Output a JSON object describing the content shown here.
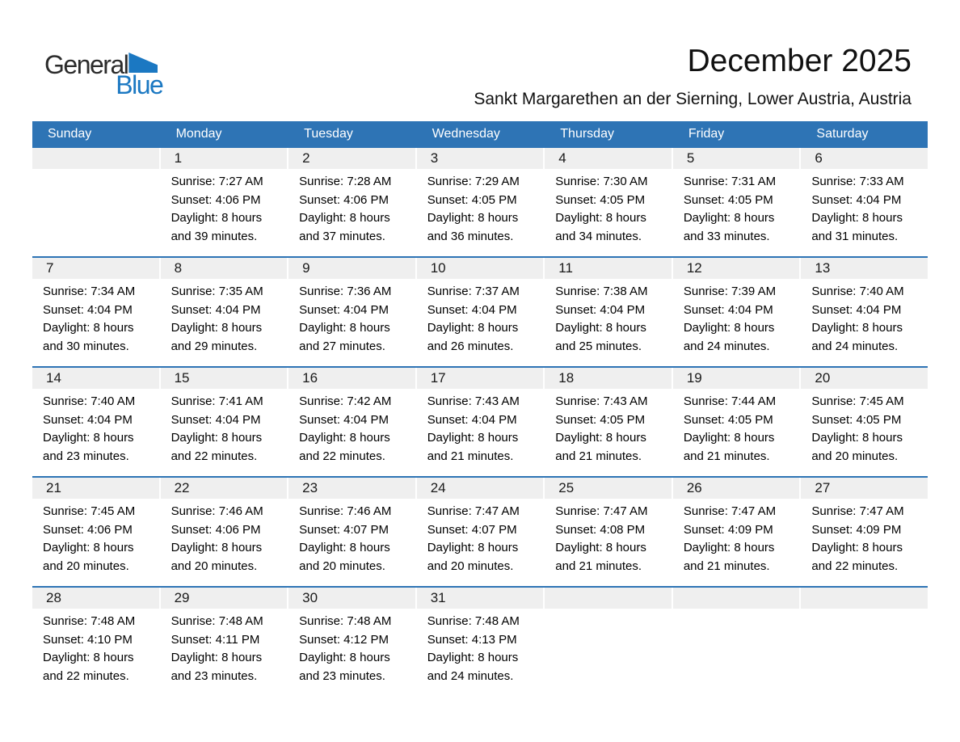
{
  "logo": {
    "general": "General",
    "blue": "Blue"
  },
  "icons": {
    "logo_triangle_icon": "blue-right-triangle-flag"
  },
  "header": {
    "title": "December 2025",
    "subtitle": "Sankt Margarethen an der Sierning, Lower Austria, Austria"
  },
  "weekdays": [
    "Sunday",
    "Monday",
    "Tuesday",
    "Wednesday",
    "Thursday",
    "Friday",
    "Saturday"
  ],
  "weeks": [
    [
      {
        "day": "",
        "lines": []
      },
      {
        "day": "1",
        "lines": [
          "Sunrise: 7:27 AM",
          "Sunset: 4:06 PM",
          "Daylight: 8 hours",
          "and 39 minutes."
        ]
      },
      {
        "day": "2",
        "lines": [
          "Sunrise: 7:28 AM",
          "Sunset: 4:06 PM",
          "Daylight: 8 hours",
          "and 37 minutes."
        ]
      },
      {
        "day": "3",
        "lines": [
          "Sunrise: 7:29 AM",
          "Sunset: 4:05 PM",
          "Daylight: 8 hours",
          "and 36 minutes."
        ]
      },
      {
        "day": "4",
        "lines": [
          "Sunrise: 7:30 AM",
          "Sunset: 4:05 PM",
          "Daylight: 8 hours",
          "and 34 minutes."
        ]
      },
      {
        "day": "5",
        "lines": [
          "Sunrise: 7:31 AM",
          "Sunset: 4:05 PM",
          "Daylight: 8 hours",
          "and 33 minutes."
        ]
      },
      {
        "day": "6",
        "lines": [
          "Sunrise: 7:33 AM",
          "Sunset: 4:04 PM",
          "Daylight: 8 hours",
          "and 31 minutes."
        ]
      }
    ],
    [
      {
        "day": "7",
        "lines": [
          "Sunrise: 7:34 AM",
          "Sunset: 4:04 PM",
          "Daylight: 8 hours",
          "and 30 minutes."
        ]
      },
      {
        "day": "8",
        "lines": [
          "Sunrise: 7:35 AM",
          "Sunset: 4:04 PM",
          "Daylight: 8 hours",
          "and 29 minutes."
        ]
      },
      {
        "day": "9",
        "lines": [
          "Sunrise: 7:36 AM",
          "Sunset: 4:04 PM",
          "Daylight: 8 hours",
          "and 27 minutes."
        ]
      },
      {
        "day": "10",
        "lines": [
          "Sunrise: 7:37 AM",
          "Sunset: 4:04 PM",
          "Daylight: 8 hours",
          "and 26 minutes."
        ]
      },
      {
        "day": "11",
        "lines": [
          "Sunrise: 7:38 AM",
          "Sunset: 4:04 PM",
          "Daylight: 8 hours",
          "and 25 minutes."
        ]
      },
      {
        "day": "12",
        "lines": [
          "Sunrise: 7:39 AM",
          "Sunset: 4:04 PM",
          "Daylight: 8 hours",
          "and 24 minutes."
        ]
      },
      {
        "day": "13",
        "lines": [
          "Sunrise: 7:40 AM",
          "Sunset: 4:04 PM",
          "Daylight: 8 hours",
          "and 24 minutes."
        ]
      }
    ],
    [
      {
        "day": "14",
        "lines": [
          "Sunrise: 7:40 AM",
          "Sunset: 4:04 PM",
          "Daylight: 8 hours",
          "and 23 minutes."
        ]
      },
      {
        "day": "15",
        "lines": [
          "Sunrise: 7:41 AM",
          "Sunset: 4:04 PM",
          "Daylight: 8 hours",
          "and 22 minutes."
        ]
      },
      {
        "day": "16",
        "lines": [
          "Sunrise: 7:42 AM",
          "Sunset: 4:04 PM",
          "Daylight: 8 hours",
          "and 22 minutes."
        ]
      },
      {
        "day": "17",
        "lines": [
          "Sunrise: 7:43 AM",
          "Sunset: 4:04 PM",
          "Daylight: 8 hours",
          "and 21 minutes."
        ]
      },
      {
        "day": "18",
        "lines": [
          "Sunrise: 7:43 AM",
          "Sunset: 4:05 PM",
          "Daylight: 8 hours",
          "and 21 minutes."
        ]
      },
      {
        "day": "19",
        "lines": [
          "Sunrise: 7:44 AM",
          "Sunset: 4:05 PM",
          "Daylight: 8 hours",
          "and 21 minutes."
        ]
      },
      {
        "day": "20",
        "lines": [
          "Sunrise: 7:45 AM",
          "Sunset: 4:05 PM",
          "Daylight: 8 hours",
          "and 20 minutes."
        ]
      }
    ],
    [
      {
        "day": "21",
        "lines": [
          "Sunrise: 7:45 AM",
          "Sunset: 4:06 PM",
          "Daylight: 8 hours",
          "and 20 minutes."
        ]
      },
      {
        "day": "22",
        "lines": [
          "Sunrise: 7:46 AM",
          "Sunset: 4:06 PM",
          "Daylight: 8 hours",
          "and 20 minutes."
        ]
      },
      {
        "day": "23",
        "lines": [
          "Sunrise: 7:46 AM",
          "Sunset: 4:07 PM",
          "Daylight: 8 hours",
          "and 20 minutes."
        ]
      },
      {
        "day": "24",
        "lines": [
          "Sunrise: 7:47 AM",
          "Sunset: 4:07 PM",
          "Daylight: 8 hours",
          "and 20 minutes."
        ]
      },
      {
        "day": "25",
        "lines": [
          "Sunrise: 7:47 AM",
          "Sunset: 4:08 PM",
          "Daylight: 8 hours",
          "and 21 minutes."
        ]
      },
      {
        "day": "26",
        "lines": [
          "Sunrise: 7:47 AM",
          "Sunset: 4:09 PM",
          "Daylight: 8 hours",
          "and 21 minutes."
        ]
      },
      {
        "day": "27",
        "lines": [
          "Sunrise: 7:47 AM",
          "Sunset: 4:09 PM",
          "Daylight: 8 hours",
          "and 22 minutes."
        ]
      }
    ],
    [
      {
        "day": "28",
        "lines": [
          "Sunrise: 7:48 AM",
          "Sunset: 4:10 PM",
          "Daylight: 8 hours",
          "and 22 minutes."
        ]
      },
      {
        "day": "29",
        "lines": [
          "Sunrise: 7:48 AM",
          "Sunset: 4:11 PM",
          "Daylight: 8 hours",
          "and 23 minutes."
        ]
      },
      {
        "day": "30",
        "lines": [
          "Sunrise: 7:48 AM",
          "Sunset: 4:12 PM",
          "Daylight: 8 hours",
          "and 23 minutes."
        ]
      },
      {
        "day": "31",
        "lines": [
          "Sunrise: 7:48 AM",
          "Sunset: 4:13 PM",
          "Daylight: 8 hours",
          "and 24 minutes."
        ]
      },
      {
        "day": "",
        "lines": []
      },
      {
        "day": "",
        "lines": []
      },
      {
        "day": "",
        "lines": []
      }
    ]
  ],
  "colors": {
    "header_blue": "#2E74B5",
    "row_border_blue": "#2E74B5",
    "band_gray": "#EFEFEF",
    "logo_blue": "#1B78C2",
    "text_black": "#111111"
  }
}
